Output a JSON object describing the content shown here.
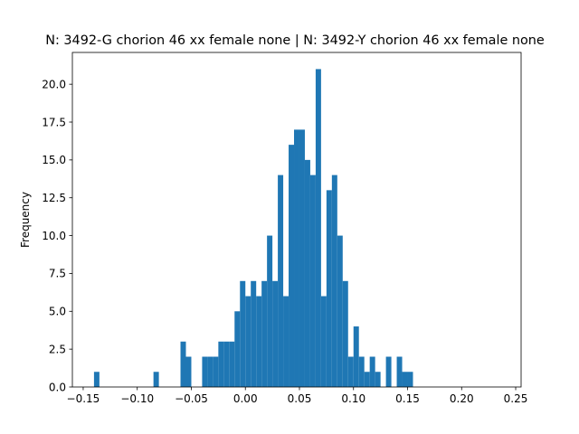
{
  "chart_data": {
    "type": "bar",
    "title": "N: 3492-G chorion 46 xx female none | N: 3492-Y chorion 46 xx female none",
    "xlabel": "",
    "ylabel": "Frequency",
    "xlim": [
      -0.16,
      0.255
    ],
    "ylim": [
      0,
      22.1
    ],
    "bin_width": 0.005,
    "xticks": [
      "−0.15",
      "−0.10",
      "−0.05",
      "0.00",
      "0.05",
      "0.10",
      "0.15",
      "0.20",
      "0.25"
    ],
    "xtick_values": [
      -0.15,
      -0.1,
      -0.05,
      0.0,
      0.05,
      0.1,
      0.15,
      0.2,
      0.25
    ],
    "yticks": [
      "0.0",
      "2.5",
      "5.0",
      "7.5",
      "10.0",
      "12.5",
      "15.0",
      "17.5",
      "20.0"
    ],
    "ytick_values": [
      0,
      2.5,
      5.0,
      7.5,
      10.0,
      12.5,
      15.0,
      17.5,
      20.0
    ],
    "color": "#1f77b4",
    "bins": [
      {
        "x": -0.14,
        "count": 1
      },
      {
        "x": -0.085,
        "count": 1
      },
      {
        "x": -0.06,
        "count": 3
      },
      {
        "x": -0.055,
        "count": 2
      },
      {
        "x": -0.04,
        "count": 2
      },
      {
        "x": -0.035,
        "count": 2
      },
      {
        "x": -0.03,
        "count": 2
      },
      {
        "x": -0.025,
        "count": 3
      },
      {
        "x": -0.02,
        "count": 3
      },
      {
        "x": -0.015,
        "count": 3
      },
      {
        "x": -0.01,
        "count": 5
      },
      {
        "x": -0.005,
        "count": 7
      },
      {
        "x": 0.0,
        "count": 6
      },
      {
        "x": 0.005,
        "count": 7
      },
      {
        "x": 0.01,
        "count": 6
      },
      {
        "x": 0.015,
        "count": 7
      },
      {
        "x": 0.02,
        "count": 10
      },
      {
        "x": 0.025,
        "count": 7
      },
      {
        "x": 0.03,
        "count": 14
      },
      {
        "x": 0.035,
        "count": 6
      },
      {
        "x": 0.04,
        "count": 16
      },
      {
        "x": 0.045,
        "count": 17
      },
      {
        "x": 0.05,
        "count": 17
      },
      {
        "x": 0.055,
        "count": 15
      },
      {
        "x": 0.06,
        "count": 14
      },
      {
        "x": 0.065,
        "count": 21
      },
      {
        "x": 0.07,
        "count": 6
      },
      {
        "x": 0.075,
        "count": 13
      },
      {
        "x": 0.08,
        "count": 14
      },
      {
        "x": 0.085,
        "count": 10
      },
      {
        "x": 0.09,
        "count": 7
      },
      {
        "x": 0.095,
        "count": 2
      },
      {
        "x": 0.1,
        "count": 4
      },
      {
        "x": 0.105,
        "count": 2
      },
      {
        "x": 0.11,
        "count": 1
      },
      {
        "x": 0.115,
        "count": 2
      },
      {
        "x": 0.12,
        "count": 1
      },
      {
        "x": 0.13,
        "count": 2
      },
      {
        "x": 0.14,
        "count": 2
      },
      {
        "x": 0.145,
        "count": 1
      },
      {
        "x": 0.15,
        "count": 1
      }
    ]
  }
}
